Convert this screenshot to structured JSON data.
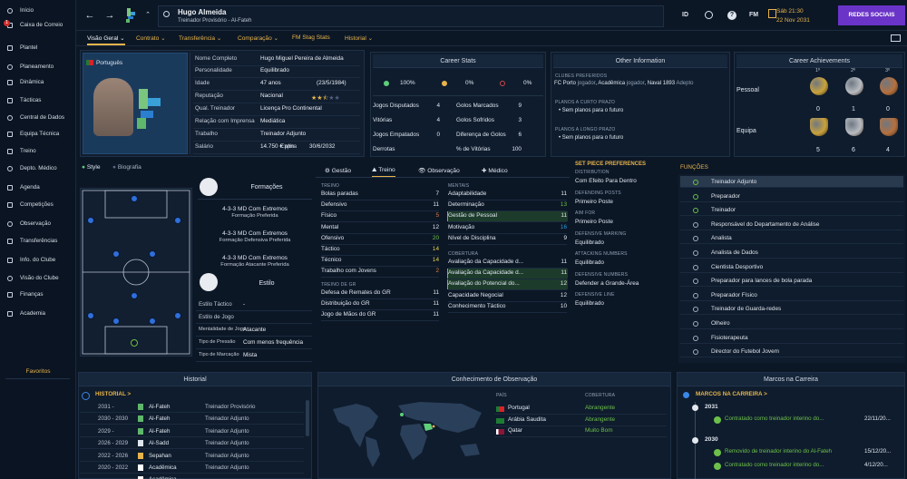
{
  "sidebar": {
    "items": [
      {
        "label": "Início"
      },
      {
        "label": "Caixa de Correio",
        "badge": "1"
      },
      {
        "label": "Plantel"
      },
      {
        "label": "Planeamento"
      },
      {
        "label": "Dinâmica"
      },
      {
        "label": "Tácticas"
      },
      {
        "label": "Central de Dados"
      },
      {
        "label": "Equipa Técnica"
      },
      {
        "label": "Treino"
      },
      {
        "label": "Depto. Médico"
      },
      {
        "label": "Agenda"
      },
      {
        "label": "Competições"
      },
      {
        "label": "Observação"
      },
      {
        "label": "Transferências"
      },
      {
        "label": "Info. do Clube"
      },
      {
        "label": "Visão do Clube"
      },
      {
        "label": "Finanças"
      },
      {
        "label": "Academia"
      }
    ],
    "favorites": "Favoritos"
  },
  "header": {
    "name": "Hugo Almeida",
    "subtitle": "Treinador Provisório - Al-Fateh",
    "tags": [
      "ID",
      "FM"
    ],
    "date_line1": "Sáb 21:30",
    "date_line2": "22 Nov 2031",
    "social_button": "REDES SOCIAIS"
  },
  "tabs": [
    {
      "label": "Visão Geral",
      "active": true
    },
    {
      "label": "Contrato"
    },
    {
      "label": "Transferência"
    },
    {
      "label": "Comparação"
    },
    {
      "label": "FM Stag Stats"
    },
    {
      "label": "Historial"
    }
  ],
  "profile": {
    "nationality": "Português",
    "fields": [
      {
        "label": "Nome Completo",
        "value": "Hugo Miguel Pereira de Almeida"
      },
      {
        "label": "Personalidade",
        "value": "Equilibrado"
      },
      {
        "label": "Idade",
        "value": "47 anos",
        "extra": "(23/5/1984)"
      },
      {
        "label": "Reputação",
        "value": "Nacional"
      },
      {
        "label": "Qual. Treinador",
        "value": "Licença Pro Continental"
      },
      {
        "label": "Relação com Imprensa",
        "value": "Mediática"
      },
      {
        "label": "Trabalho",
        "value": "Treinador Adjunto"
      },
      {
        "label": "Salário",
        "value": "14.750 € p/m",
        "extra_label": "Expira",
        "extra": "30/6/2032"
      }
    ]
  },
  "career_stats": {
    "title": "Career Stats",
    "pcts": [
      "100%",
      "0%",
      "0%"
    ],
    "rows": [
      {
        "l1": "Jogos Disputados",
        "v1": "4",
        "l2": "Golos Marcados",
        "v2": "9"
      },
      {
        "l1": "Vitórias",
        "v1": "4",
        "l2": "Golos Sofridos",
        "v2": "3"
      },
      {
        "l1": "Jogos Empatados",
        "v1": "0",
        "l2": "Diferença de Golos",
        "v2": "6"
      },
      {
        "l1": "Derrotas",
        "v1": "",
        "l2": "% de Vitórias",
        "v2": "100"
      }
    ]
  },
  "other_info": {
    "title": "Other Information",
    "clubes_header": "CLUBES PREFERIDOS",
    "clubes": [
      {
        "t": "FC Porto",
        "c": "normal"
      },
      {
        "t": "jogador",
        "c": "muted"
      },
      {
        "t": ", Acadêmica",
        "c": "normal"
      },
      {
        "t": "jogador",
        "c": "muted"
      },
      {
        "t": ", Naval 1893",
        "c": "normal"
      },
      {
        "t": "Adepto",
        "c": "muted"
      }
    ],
    "curto_header": "PLANOS A CURTO PRAZO",
    "curto": "Sem planos para o futuro",
    "longo_header": "PLANOS A LONGO PRAZO",
    "longo": "Sem planos para o futuro"
  },
  "achievements": {
    "title": "Career Achievements",
    "places": [
      "1º",
      "2º",
      "3º"
    ],
    "rows": [
      {
        "label": "Pessoal",
        "counts": [
          "0",
          "1",
          "0"
        ]
      },
      {
        "label": "Equipa",
        "counts": [
          "5",
          "6",
          "4"
        ]
      }
    ]
  },
  "style_tabs": [
    "Style",
    "Biografia"
  ],
  "formations": {
    "title": "Formações",
    "items": [
      {
        "name": "4-3-3 MD Com Extremos",
        "sub": "Formação Preferida"
      },
      {
        "name": "4-3-3 MD Com Extremos",
        "sub": "Formação Defensiva Preferida"
      },
      {
        "name": "4-3-3 MD Com Extremos",
        "sub": "Formação Atacante Preferida"
      }
    ]
  },
  "style": {
    "title": "Estilo",
    "rows": [
      {
        "label": "Estilo Táctico",
        "value": "-"
      },
      {
        "label": "Estilo de Jogo",
        "value": ""
      },
      {
        "label": "Mentalidade de Jogo",
        "value": "Atacante"
      },
      {
        "label": "Tipo de Pressão",
        "value": "Com menos frequência"
      },
      {
        "label": "Tipo de Marcação",
        "value": "Mista"
      }
    ]
  },
  "attr_tabs": [
    "Gestão",
    "Treino",
    "Observação",
    "Médico"
  ],
  "attributes": {
    "treino_header": "TREINO",
    "treino": [
      {
        "l": "Bolas paradas",
        "v": "7"
      },
      {
        "l": "Defensivo",
        "v": "11"
      },
      {
        "l": "Físico",
        "v": "5"
      },
      {
        "l": "Mental",
        "v": "12"
      },
      {
        "l": "Ofensivo",
        "v": "20"
      },
      {
        "l": "Táctico",
        "v": "14"
      },
      {
        "l": "Técnico",
        "v": "14"
      },
      {
        "l": "Trabalho com Jovens",
        "v": "2"
      }
    ],
    "gr_header": "TREINO DE GR",
    "gr": [
      {
        "l": "Defesa de Remates do GR",
        "v": "11"
      },
      {
        "l": "Distribuição do GR",
        "v": "11"
      },
      {
        "l": "Jogo de Mãos do GR",
        "v": "11"
      }
    ],
    "mentais_header": "MENTAIS",
    "mentais": [
      {
        "l": "Adaptabilidade",
        "v": "11"
      },
      {
        "l": "Determinação",
        "v": "13"
      },
      {
        "l": "Gestão de Pessoal",
        "v": "11"
      },
      {
        "l": "Motivação",
        "v": "16"
      },
      {
        "l": "Nível de Disciplina",
        "v": "9"
      }
    ],
    "cobertura_header": "COBERTURA",
    "cobertura": [
      {
        "l": "Avaliação da Capacidade d...",
        "v": "11"
      },
      {
        "l": "Avaliação da Capacidade d...",
        "v": "11"
      },
      {
        "l": "Avaliação do Potencial do...",
        "v": "12"
      },
      {
        "l": "Capacidade Negocial",
        "v": "12"
      },
      {
        "l": "Conhecimento Táctico",
        "v": "10"
      }
    ]
  },
  "set_piece": {
    "title": "SET PIECE PREFERENCES",
    "groups": [
      {
        "h": "DISTRIBUTION",
        "v": "Com Efeito Para Dentro"
      },
      {
        "h": "DEFENDING POSTS",
        "v": "Primeiro Poste"
      },
      {
        "h": "AIM FOR",
        "v": "Primeiro Poste"
      },
      {
        "h": "DEFENSIVE MARKING",
        "v": "Equilibrado"
      },
      {
        "h": "ATTACKING NUMBERS",
        "v": "Equilibrado"
      },
      {
        "h": "DEFENSIVE NUMBERS",
        "v": "Defender a Grande-Área"
      },
      {
        "h": "DEFENSIVE LINE",
        "v": "Equilibrado"
      }
    ]
  },
  "functions": {
    "title": "FUNÇÕES",
    "items": [
      "Treinador Adjunto",
      "Preparador",
      "Treinador",
      "Responsável do Departamento de Análise",
      "Analista",
      "Analista de Dados",
      "Cientista Desportivo",
      "Preparador para lances de bola parada",
      "Preparador Físico",
      "Treinador de Guarda-redes",
      "Olheiro",
      "Fisioterapeuta",
      "Director do Futebol Jovem"
    ]
  },
  "historial": {
    "title": "Historial",
    "header": "HISTORIAL >",
    "rows": [
      {
        "years": "2031 -",
        "club": "Al-Fateh",
        "role": "Treinador Provisório"
      },
      {
        "years": "2030 - 2030",
        "club": "Al-Fateh",
        "role": "Treinador Adjunto"
      },
      {
        "years": "2029 -",
        "club": "Al-Fateh",
        "role": "Treinador Adjunto"
      },
      {
        "years": "2026 - 2029",
        "club": "Al-Sadd",
        "role": "Treinador Adjunto"
      },
      {
        "years": "2022 - 2026",
        "club": "Sepahan",
        "role": "Treinador Adjunto"
      },
      {
        "years": "2020 - 2022",
        "club": "Acadêmica",
        "role": "Treinador Adjunto"
      },
      {
        "years": "",
        "club": "Acadêmica",
        "role": ""
      }
    ]
  },
  "scouting": {
    "title": "Conhecimento de Observação",
    "col1": "PAÍS",
    "col2": "COBERTURA",
    "rows": [
      {
        "country": "Portugal",
        "cov": "Abrangente"
      },
      {
        "country": "Arábia Saudita",
        "cov": "Abrangente"
      },
      {
        "country": "Qatar",
        "cov": "Muito Bom"
      }
    ]
  },
  "milestones": {
    "title": "Marcos na Carreira",
    "header": "MARCOS NA CARREIRA >",
    "groups": [
      {
        "year": "2031",
        "items": [
          {
            "t": "Contratado como treinador interino do...",
            "d": "22/11/20..."
          }
        ]
      },
      {
        "year": "2030",
        "items": [
          {
            "t": "Removido de treinador interino do Al-Fateh",
            "d": "15/12/20..."
          },
          {
            "t": "Contratado como treinador interino do...",
            "d": "4/12/20..."
          }
        ]
      }
    ]
  },
  "colors": {
    "accent": "#e7b44a",
    "social": "#6a34c8",
    "bg": "#0c1726",
    "panel": "#111e30",
    "green": "#6cc04a",
    "blue_dot": "#2f6fdc"
  }
}
